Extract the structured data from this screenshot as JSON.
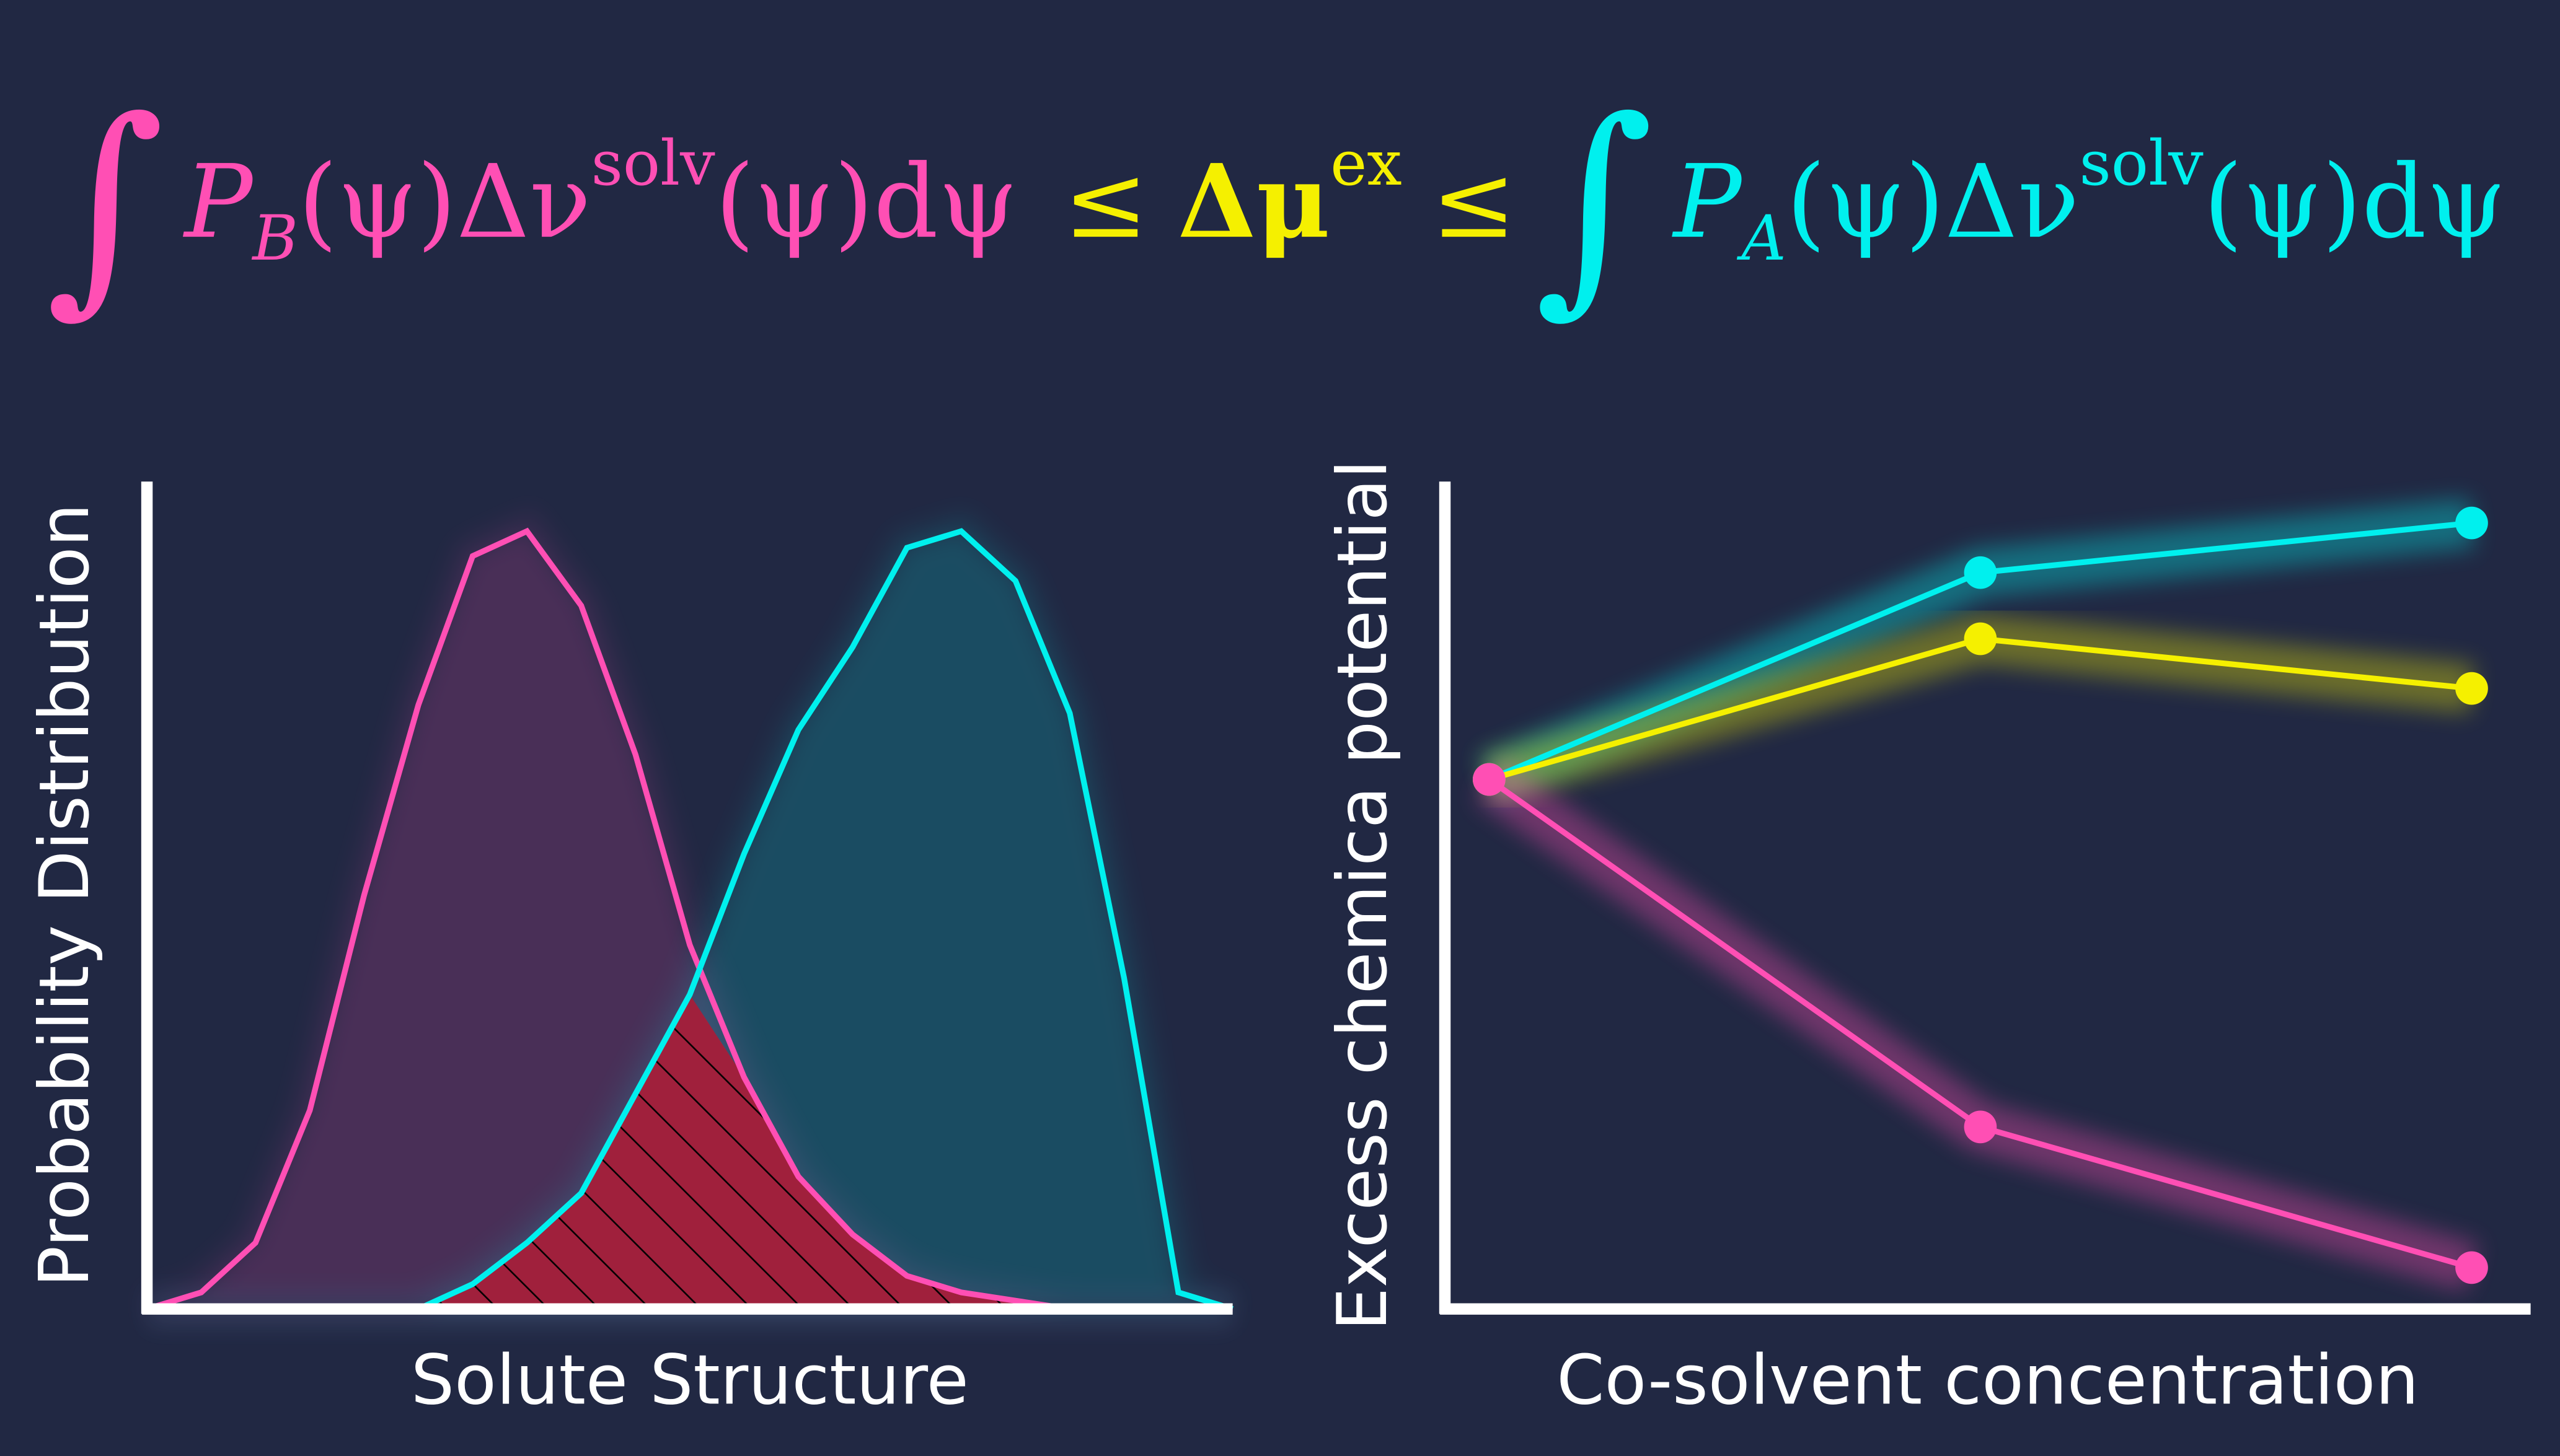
{
  "equation": {
    "left": {
      "integral": "∫",
      "symbol": "P",
      "subscript": "B",
      "body": "(ψ)Δν",
      "superscript": "solv",
      "tail": "(ψ)dψ",
      "color": "#ff4fb4"
    },
    "middle": {
      "leq1": "≤",
      "symbol": "Δμ",
      "superscript": "ex",
      "leq2": "≤",
      "color": "#f5f000"
    },
    "right": {
      "integral": "∫",
      "symbol": "P",
      "subscript": "A",
      "body": "(ψ)Δν",
      "superscript": "solv",
      "tail": "(ψ)dψ",
      "color": "#00f0ee"
    }
  },
  "chart_data": [
    {
      "type": "area",
      "xlabel": "Solute Structure",
      "ylabel": "Probability Distribution",
      "x": [
        0,
        0.5,
        1,
        1.5,
        2,
        2.5,
        3,
        3.5,
        4,
        4.5,
        5,
        5.5,
        6,
        6.5,
        7,
        7.5,
        8,
        8.5,
        9,
        9.5,
        10
      ],
      "xlim": [
        0,
        10
      ],
      "ylim": [
        0,
        1
      ],
      "overlap_color": "#a0203c",
      "series": [
        {
          "color": "#ff4fb4",
          "values": [
            0,
            0.02,
            0.08,
            0.24,
            0.5,
            0.73,
            0.91,
            0.94,
            0.85,
            0.67,
            0.44,
            0.28,
            0.16,
            0.09,
            0.04,
            0.02,
            0.01,
            0,
            0,
            0,
            0
          ]
        },
        {
          "color": "#00f0ee",
          "values": [
            0,
            0,
            0,
            0,
            0,
            0,
            0.03,
            0.08,
            0.14,
            0.26,
            0.38,
            0.55,
            0.7,
            0.8,
            0.92,
            0.94,
            0.88,
            0.72,
            0.4,
            0.02,
            0
          ]
        }
      ]
    },
    {
      "type": "line",
      "xlabel": "Co-solvent concentration",
      "ylabel": "Excess chemica potential",
      "x": [
        0,
        1,
        2
      ],
      "xlim": [
        -0.09,
        2.12
      ],
      "ylim": [
        0,
        1
      ],
      "series": [
        {
          "color": "#00f0ee",
          "values": [
            0.64,
            0.89,
            0.95
          ]
        },
        {
          "color": "#f5f000",
          "values": [
            0.64,
            0.81,
            0.75
          ]
        },
        {
          "color": "#ff4fb4",
          "values": [
            0.64,
            0.22,
            0.05
          ]
        }
      ]
    }
  ]
}
